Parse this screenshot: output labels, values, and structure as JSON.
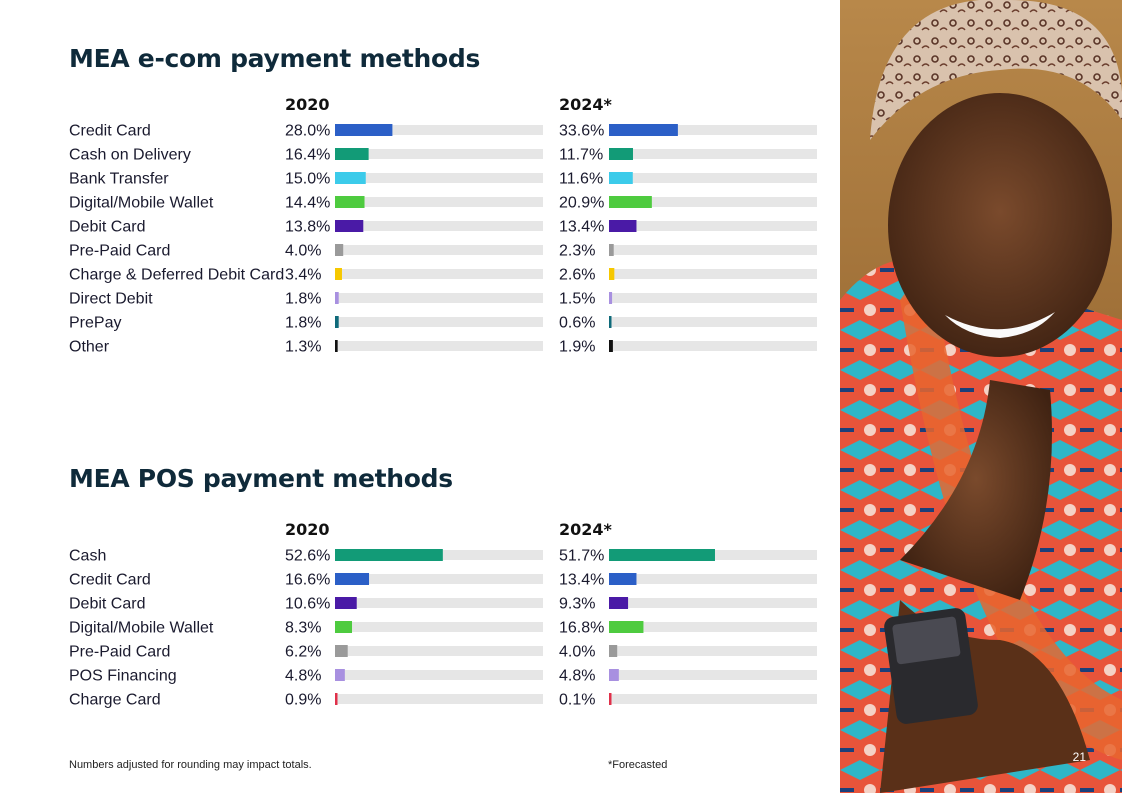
{
  "page": {
    "number": "21"
  },
  "footnotes": {
    "rounding": "Numbers adjusted for rounding may impact totals.",
    "forecast": "*Forecasted"
  },
  "colors": {
    "track": "#e6e6e6",
    "blue": "#2b5fc7",
    "green": "#129b77",
    "cyan": "#3ccbea",
    "lime": "#4ecb3f",
    "purple": "#4a1aa6",
    "gray": "#9a9a9a",
    "yellow": "#f6c800",
    "lavender": "#a890e0",
    "teal": "#0f6a7a",
    "black": "#111111",
    "red": "#e0304a"
  },
  "photo": {
    "subject": "woman-smiling-with-phone"
  },
  "chart_data": [
    {
      "type": "bar",
      "title": "MEA e-com payment methods",
      "periods": [
        "2020",
        "2024*"
      ],
      "xlim": [
        0,
        100
      ],
      "categories": [
        "Credit Card",
        "Cash on Delivery",
        "Bank Transfer",
        "Digital/Mobile Wallet",
        "Debit Card",
        "Pre-Paid Card",
        "Charge & Deferred Debit Card",
        "Direct Debit",
        "PrePay",
        "Other"
      ],
      "bar_colors": [
        "blue",
        "green",
        "cyan",
        "lime",
        "purple",
        "gray",
        "yellow",
        "lavender",
        "teal",
        "black"
      ],
      "series": [
        {
          "values": [
            28.0,
            16.4,
            15.0,
            14.4,
            13.8,
            4.0,
            3.4,
            1.8,
            1.8,
            1.3
          ],
          "labels": [
            "28.0%",
            "16.4%",
            "15.0%",
            "14.4%",
            "13.8%",
            "4.0%",
            "3.4%",
            "1.8%",
            "1.8%",
            "1.3%"
          ]
        },
        {
          "values": [
            33.6,
            11.7,
            11.6,
            20.9,
            13.4,
            2.3,
            2.6,
            1.5,
            0.6,
            1.9
          ],
          "labels": [
            "33.6%",
            "11.7%",
            "11.6%",
            "20.9%",
            "13.4%",
            "2.3%",
            "2.6%",
            "1.5%",
            "0.6%",
            "1.9%"
          ]
        }
      ]
    },
    {
      "type": "bar",
      "title": "MEA POS payment methods",
      "periods": [
        "2020",
        "2024*"
      ],
      "xlim": [
        0,
        100
      ],
      "categories": [
        "Cash",
        "Credit Card",
        "Debit Card",
        "Digital/Mobile Wallet",
        "Pre-Paid Card",
        "POS Financing",
        "Charge Card"
      ],
      "bar_colors": [
        "green",
        "blue",
        "purple",
        "lime",
        "gray",
        "lavender",
        "red"
      ],
      "series": [
        {
          "values": [
            52.6,
            16.6,
            10.6,
            8.3,
            6.2,
            4.8,
            0.9
          ],
          "labels": [
            "52.6%",
            "16.6%",
            "10.6%",
            "8.3%",
            "6.2%",
            "4.8%",
            "0.9%"
          ]
        },
        {
          "values": [
            51.7,
            13.4,
            9.3,
            16.8,
            4.0,
            4.8,
            0.1
          ],
          "labels": [
            "51.7%",
            "13.4%",
            "9.3%",
            "16.8%",
            "4.0%",
            "4.8%",
            "0.1%"
          ]
        }
      ]
    }
  ]
}
